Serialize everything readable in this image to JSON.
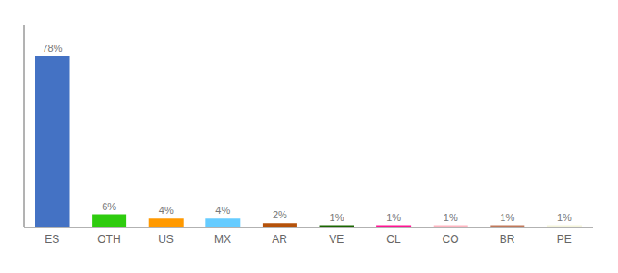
{
  "chart_data": {
    "type": "bar",
    "categories": [
      "ES",
      "OTH",
      "US",
      "MX",
      "AR",
      "VE",
      "CL",
      "CO",
      "BR",
      "PE"
    ],
    "values": [
      78,
      6,
      4,
      4,
      2,
      1,
      1,
      1,
      1,
      1
    ],
    "value_labels": [
      "78%",
      "6%",
      "4%",
      "4%",
      "2%",
      "1%",
      "1%",
      "1%",
      "1%",
      "1%"
    ],
    "data_labels": true,
    "colors": [
      "#4472c4",
      "#2ecc0e",
      "#ff9900",
      "#66ccff",
      "#b5520a",
      "#1a6600",
      "#ff1493",
      "#ffb6c1",
      "#c0785a",
      "#f5f5dc"
    ],
    "ylim": [
      0,
      92.04
    ],
    "tick_labels": "x",
    "grid": false
  }
}
